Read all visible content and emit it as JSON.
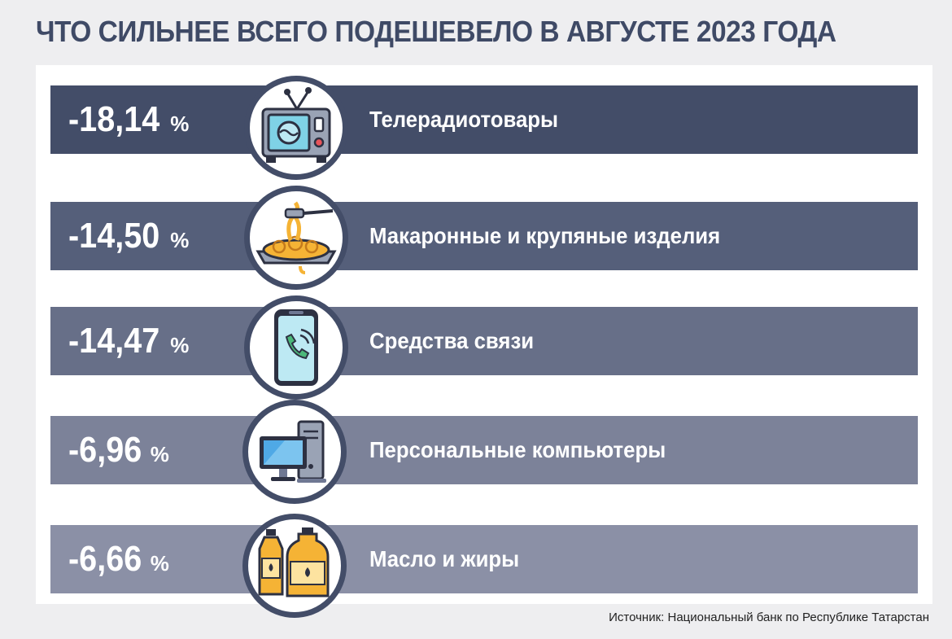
{
  "title": "ЧТО СИЛЬНЕЕ ВСЕГО ПОДЕШЕВЕЛО В АВГУСТЕ 2023 ГОДА",
  "source": "Источник: Национальный банк по Республике Татарстан",
  "colors": {
    "title": "#3f4a66",
    "row_colors": [
      "#434d68",
      "#555f7a",
      "#676f88",
      "#7c8299",
      "#8b90a6"
    ],
    "circle_border": "#434d68"
  },
  "chart_data": {
    "type": "table",
    "title": "ЧТО СИЛЬНЕЕ ВСЕГО ПОДЕШЕВЕЛО В АВГУСТЕ 2023 ГОДА",
    "unit": "%",
    "rows": [
      {
        "value": -18.14,
        "value_text": "-18,14",
        "unit": "%",
        "label": "Телерадиотовары",
        "icon": "tv-icon"
      },
      {
        "value": -14.5,
        "value_text": "-14,50",
        "unit": "%",
        "label": "Макаронные и крупяные изделия",
        "icon": "pasta-icon"
      },
      {
        "value": -14.47,
        "value_text": "-14,47",
        "unit": "%",
        "label": "Средства связи",
        "icon": "smartphone-icon"
      },
      {
        "value": -6.96,
        "value_text": "-6,96",
        "unit": "%",
        "label": "Персональные компьютеры",
        "icon": "computer-icon"
      },
      {
        "value": -6.66,
        "value_text": "-6,66",
        "unit": "%",
        "label": "Масло и жиры",
        "icon": "oil-bottles-icon"
      }
    ]
  }
}
